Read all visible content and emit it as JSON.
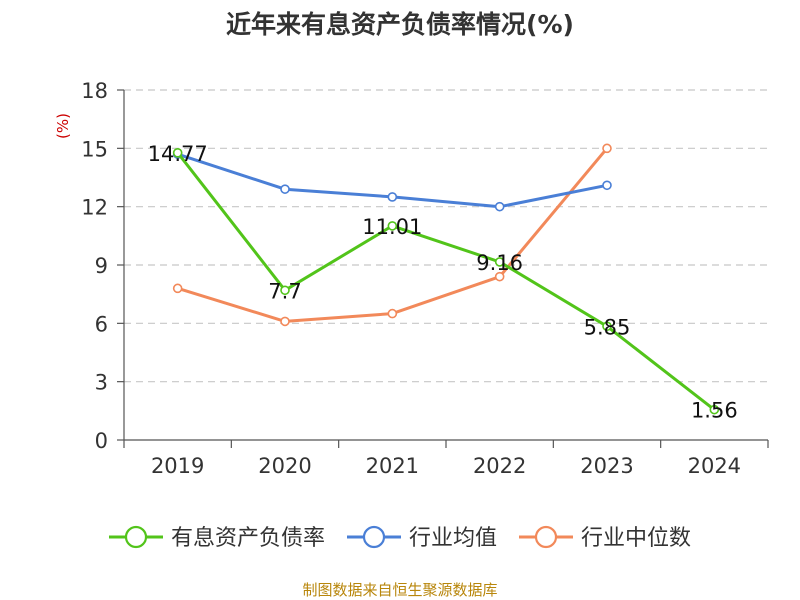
{
  "chart_data": {
    "type": "line",
    "title": "近年来有息资产负债率情况(%)",
    "ylabel": "(%)",
    "xlabel": "",
    "categories": [
      "2019",
      "2020",
      "2021",
      "2022",
      "2023",
      "2024"
    ],
    "ylim": [
      0,
      18
    ],
    "yticks": [
      0,
      3,
      6,
      9,
      12,
      15,
      18
    ],
    "grid": true,
    "legend_position": "bottom",
    "series": [
      {
        "name": "有息资产负债率",
        "color": "#52c41a",
        "values": [
          14.77,
          7.7,
          11.01,
          9.16,
          5.85,
          1.56
        ],
        "labels": [
          "14.77",
          "7.7",
          "11.01",
          "9.16",
          "5.85",
          "1.56"
        ]
      },
      {
        "name": "行业均值",
        "color": "#4a7fd6",
        "values": [
          14.7,
          12.9,
          12.5,
          12.0,
          13.1,
          null
        ]
      },
      {
        "name": "行业中位数",
        "color": "#f2895a",
        "values": [
          7.8,
          6.1,
          6.5,
          8.4,
          15.0,
          null
        ]
      }
    ],
    "source": "制图数据来自恒生聚源数据库"
  }
}
